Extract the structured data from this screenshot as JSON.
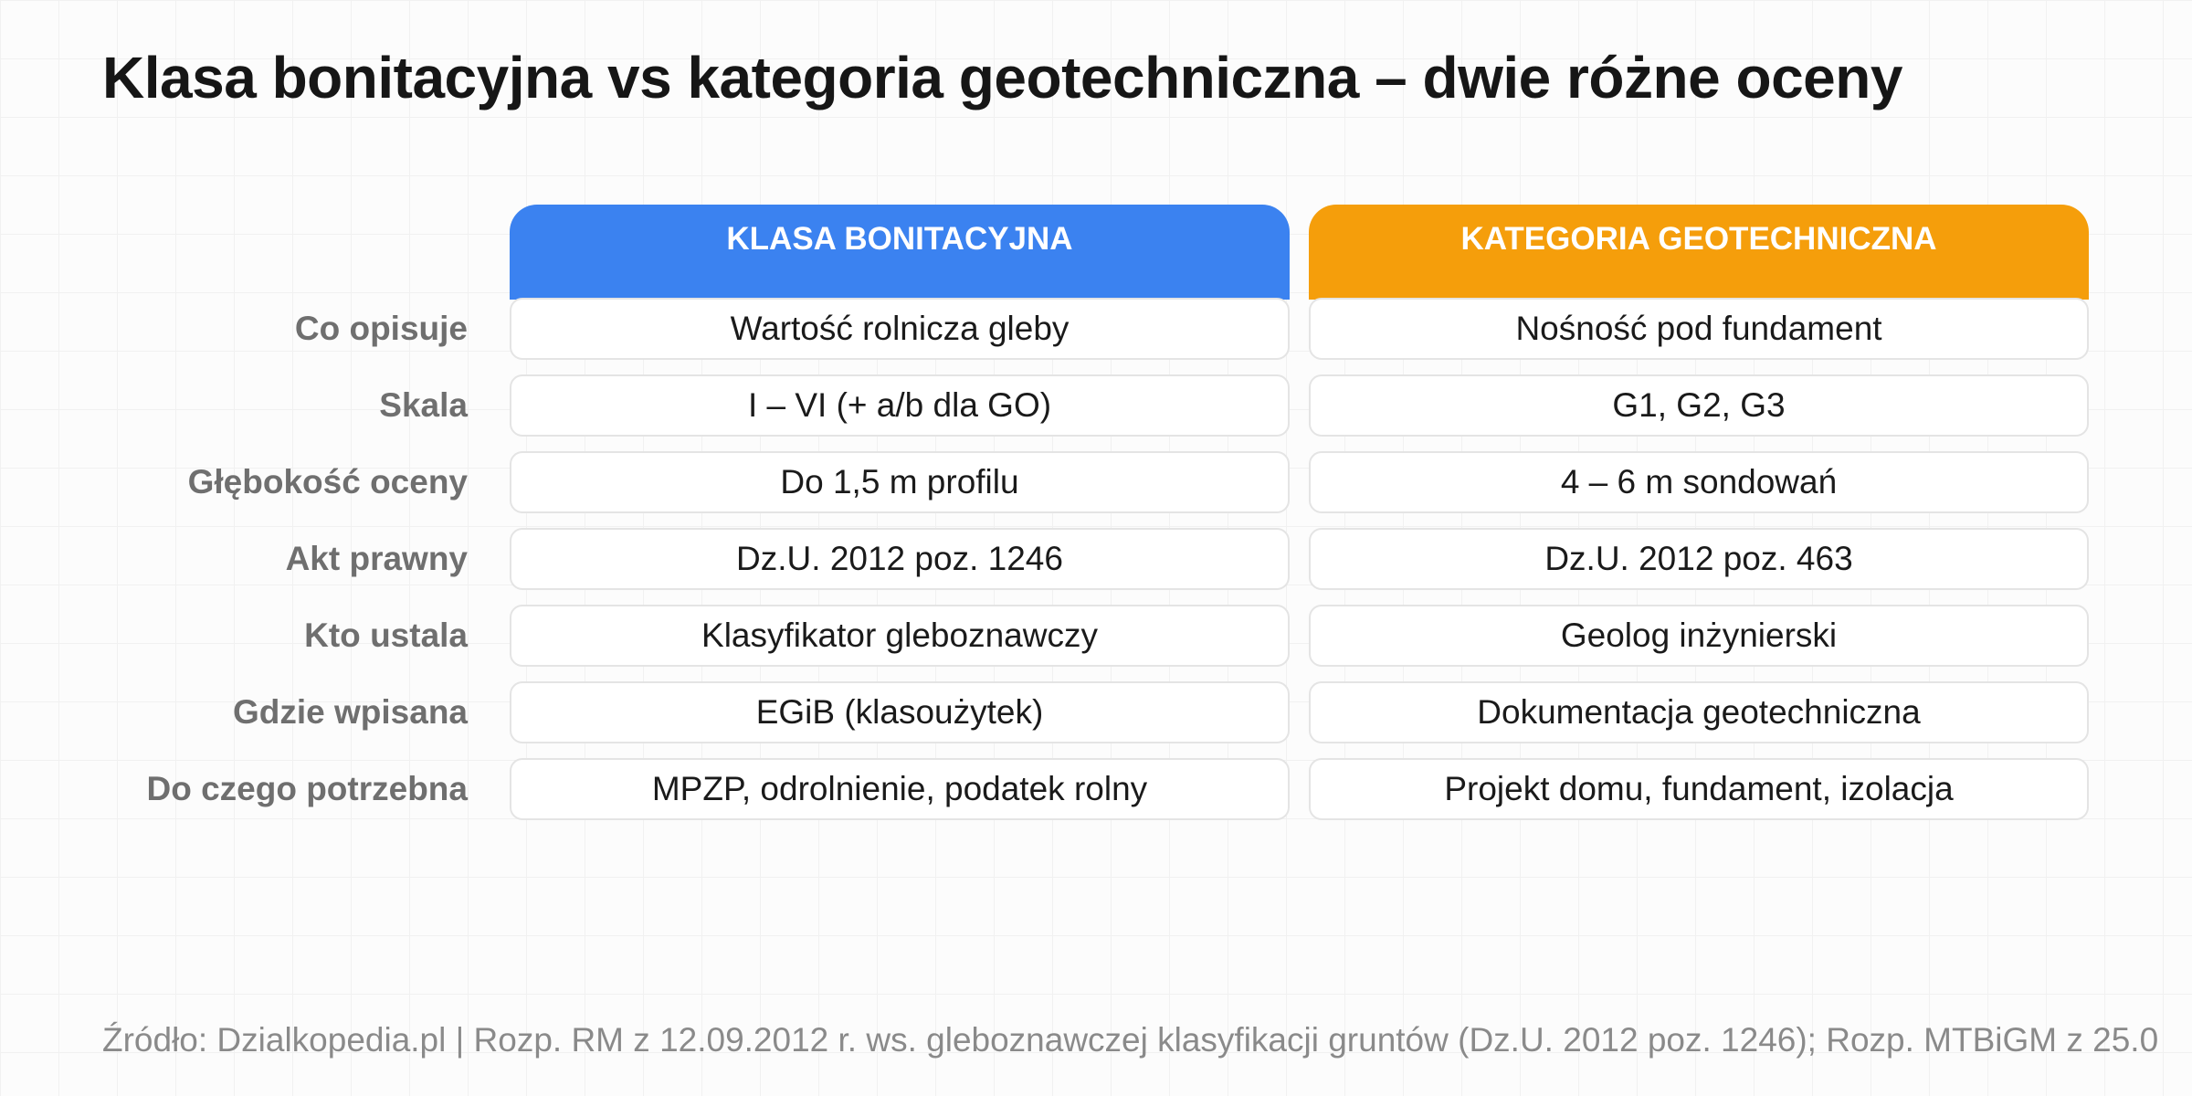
{
  "title": "Klasa bonitacyjna vs kategoria geotechniczna – dwie różne oceny",
  "columns": [
    {
      "label": "KLASA BONITACYJNA",
      "color": "#3b82f0"
    },
    {
      "label": "KATEGORIA GEOTECHNICZNA",
      "color": "#f59e0b"
    }
  ],
  "rows": [
    {
      "label": "Co opisuje",
      "a": "Wartość rolnicza gleby",
      "b": "Nośność pod fundament"
    },
    {
      "label": "Skala",
      "a": "I – VI (+ a/b dla GO)",
      "b": "G1, G2, G3"
    },
    {
      "label": "Głębokość oceny",
      "a": "Do 1,5 m profilu",
      "b": "4 – 6 m sondowań"
    },
    {
      "label": "Akt prawny",
      "a": "Dz.U. 2012 poz. 1246",
      "b": "Dz.U. 2012 poz. 463"
    },
    {
      "label": "Kto ustala",
      "a": "Klasyfikator gleboznawczy",
      "b": "Geolog inżynierski"
    },
    {
      "label": "Gdzie wpisana",
      "a": "EGiB (klasoużytek)",
      "b": "Dokumentacja geotechniczna"
    },
    {
      "label": "Do czego potrzebna",
      "a": "MPZP, odrolnienie, podatek rolny",
      "b": "Projekt domu, fundament, izolacja"
    }
  ],
  "footer": "Źródło: Dzialkopedia.pl | Rozp. RM z 12.09.2012 r. ws. gleboznawczej klasyfikacji gruntów (Dz.U. 2012 poz. 1246); Rozp. MTBiGM z 25.0"
}
